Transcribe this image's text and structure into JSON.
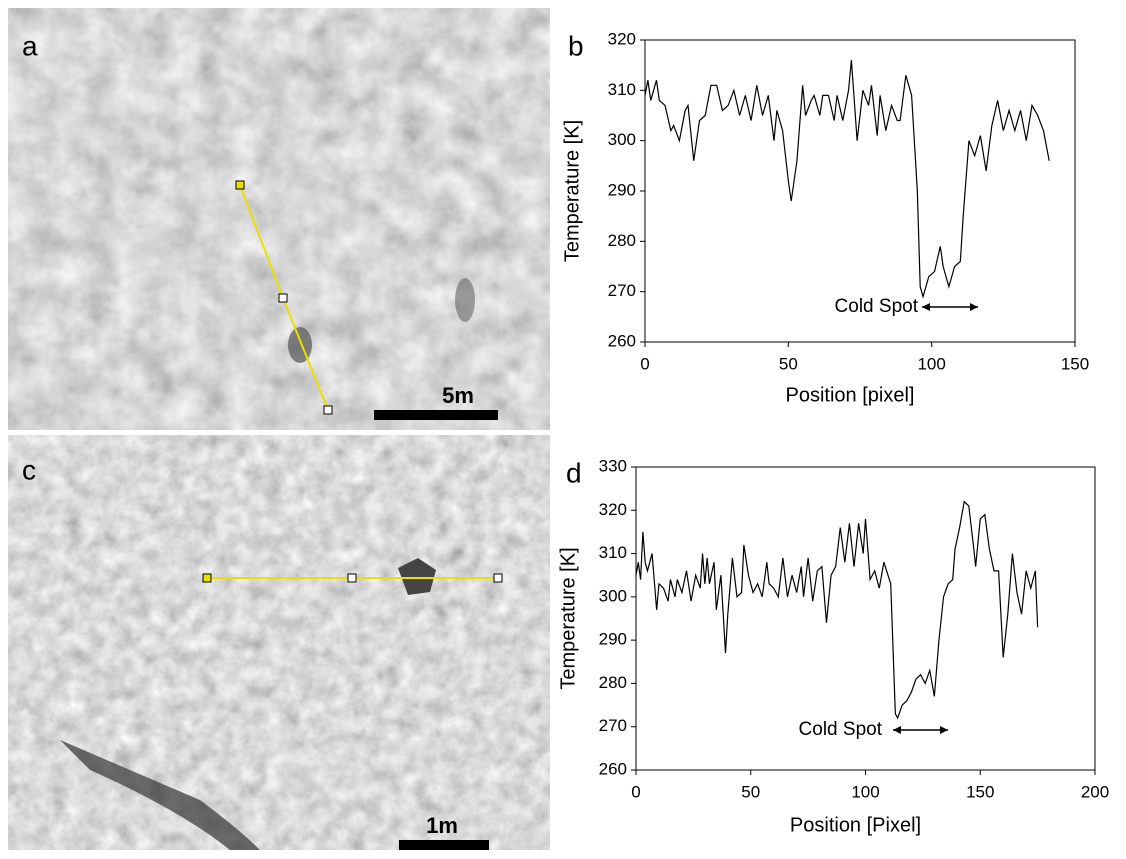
{
  "images": [
    {
      "label": "a",
      "scale": "5m"
    },
    {
      "label": "c",
      "scale": "1m"
    }
  ],
  "chart_data": [
    {
      "type": "line",
      "panel_label": "b",
      "x_label": "Position [pixel]",
      "y_label": "Temperature [K]",
      "annotation": "Cold Spot",
      "color": "#000000",
      "x": [
        0,
        1,
        2,
        4,
        5,
        7,
        9,
        10,
        12,
        14,
        15,
        17,
        19,
        21,
        23,
        25,
        27,
        29,
        31,
        33,
        35,
        37,
        39,
        41,
        43,
        45,
        46,
        48,
        50,
        51,
        53,
        55,
        56,
        58,
        59,
        61,
        62,
        64,
        66,
        67,
        69,
        71,
        72,
        74,
        76,
        78,
        79,
        81,
        82,
        84,
        86,
        88,
        89,
        91,
        93,
        95,
        96,
        97,
        99,
        101,
        103,
        104,
        106,
        108,
        110,
        111,
        113,
        115,
        117,
        119,
        121,
        123,
        125,
        127,
        129,
        131,
        133,
        135,
        137,
        139,
        141
      ],
      "values": [
        309,
        312,
        308,
        312,
        308,
        307,
        302,
        303,
        300,
        306,
        307,
        296,
        304,
        305,
        311,
        311,
        306,
        307,
        310,
        305,
        309,
        304,
        311,
        305,
        309,
        300,
        306,
        302,
        292,
        288,
        296,
        311,
        305,
        308,
        309,
        305,
        309,
        309,
        304,
        309,
        304,
        310,
        316,
        300,
        310,
        307,
        311,
        301,
        309,
        302,
        307,
        304,
        304,
        313,
        309,
        290,
        271,
        269,
        273,
        274,
        279,
        275,
        271,
        275,
        276,
        285,
        300,
        297,
        301,
        294,
        303,
        308,
        302,
        306,
        302,
        306,
        300,
        307,
        305,
        302,
        296
      ],
      "xlim": [
        0,
        150
      ],
      "xticks": [
        0,
        50,
        100,
        150
      ],
      "ylim": [
        260,
        320
      ],
      "yticks": [
        260,
        270,
        280,
        290,
        300,
        310,
        320
      ]
    },
    {
      "type": "line",
      "panel_label": "d",
      "x_label": "Position [Pixel]",
      "y_label": "Temperature [K]",
      "annotation": "Cold Spot",
      "color": "#000000",
      "x": [
        0,
        1,
        2,
        3,
        4,
        5,
        7,
        9,
        10,
        12,
        14,
        15,
        17,
        18,
        20,
        22,
        24,
        26,
        28,
        29,
        30,
        31,
        32,
        34,
        35,
        37,
        39,
        40,
        42,
        44,
        46,
        47,
        49,
        51,
        53,
        55,
        57,
        58,
        60,
        62,
        64,
        66,
        68,
        70,
        72,
        73,
        75,
        77,
        79,
        81,
        83,
        85,
        87,
        89,
        91,
        93,
        95,
        97,
        99,
        100,
        102,
        104,
        106,
        108,
        111,
        113,
        114,
        116,
        118,
        120,
        122,
        124,
        126,
        128,
        130,
        132,
        134,
        136,
        138,
        139,
        141,
        143,
        145,
        147,
        148,
        150,
        152,
        154,
        156,
        158,
        160,
        162,
        164,
        166,
        168,
        170,
        172,
        174,
        175
      ],
      "values": [
        305,
        308,
        304,
        315,
        308,
        306,
        310,
        297,
        303,
        302,
        299,
        304,
        300,
        304,
        301,
        306,
        299,
        305,
        302,
        310,
        303,
        309,
        303,
        308,
        297,
        305,
        287,
        296,
        309,
        300,
        301,
        312,
        305,
        301,
        303,
        300,
        308,
        303,
        302,
        300,
        309,
        300,
        305,
        301,
        307,
        300,
        309,
        299,
        306,
        307,
        294,
        305,
        307,
        316,
        308,
        317,
        307,
        317,
        310,
        318,
        304,
        306,
        302,
        308,
        303,
        273,
        272,
        275,
        276,
        278,
        281,
        282,
        280,
        283,
        277,
        290,
        300,
        303,
        304,
        311,
        316,
        322,
        321,
        312,
        307,
        318,
        319,
        311,
        306,
        306,
        286,
        296,
        310,
        301,
        296,
        306,
        302,
        306,
        293
      ],
      "xlim": [
        0,
        200
      ],
      "xticks": [
        0,
        50,
        100,
        150,
        200
      ],
      "ylim": [
        260,
        330
      ],
      "yticks": [
        260,
        270,
        280,
        290,
        300,
        310,
        320,
        330
      ]
    }
  ]
}
